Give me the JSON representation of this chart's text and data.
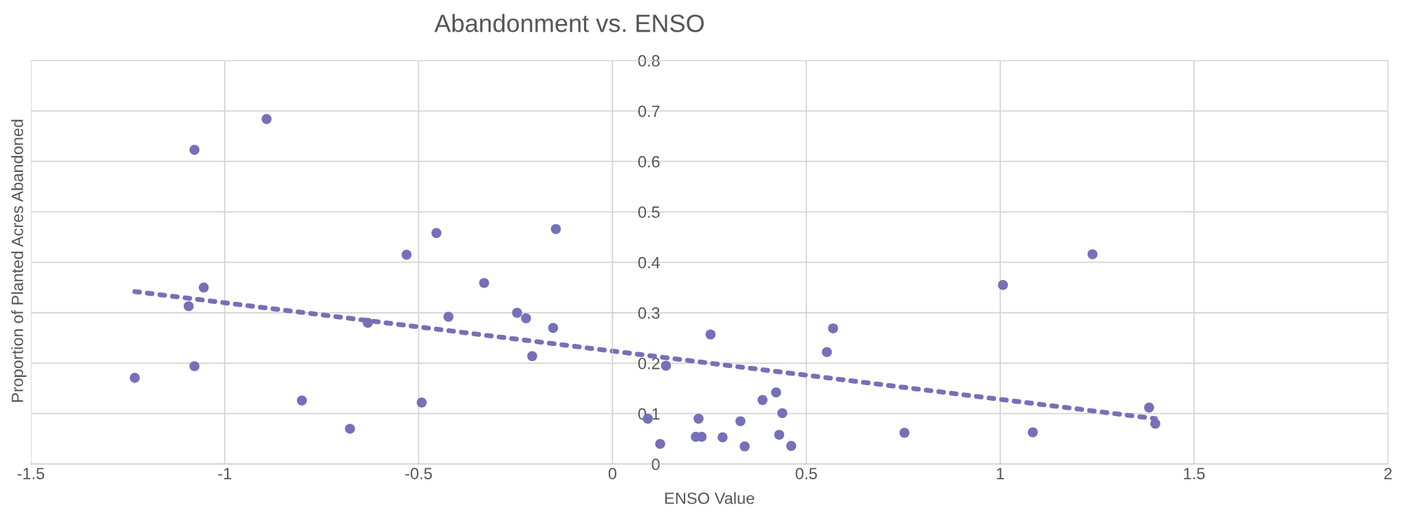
{
  "chart_data": {
    "type": "scatter",
    "title": "Abandonment vs. ENSO",
    "xlabel": "ENSO Value",
    "ylabel": "Proportion of Planted Acres Abandoned",
    "xlim": [
      -1.5,
      2
    ],
    "xticks": [
      -1.5,
      -1,
      -0.5,
      0,
      0.5,
      1,
      1.5,
      2
    ],
    "ylim": [
      0,
      0.8
    ],
    "yticks": [
      0,
      0.1,
      0.2,
      0.3,
      0.4,
      0.5,
      0.6,
      0.7,
      0.8
    ],
    "grid": true,
    "marker": "circle",
    "series": [
      {
        "color": "#7570b8",
        "x": [
          -0.892,
          -1.078,
          -0.454,
          -0.531,
          -0.146,
          -0.331,
          -1.054,
          -1.093,
          -0.423,
          -0.246,
          -0.223,
          -0.153,
          -0.207,
          -0.631,
          -1.232,
          -1.078,
          -0.801,
          -0.492,
          -0.677,
          0.091,
          0.123,
          0.138,
          0.253,
          0.222,
          0.215,
          0.23,
          0.284,
          0.33,
          0.341,
          0.387,
          0.422,
          0.438,
          0.43,
          0.461,
          0.553,
          0.569,
          0.753,
          1.007,
          1.238,
          1.084,
          1.384,
          1.4
        ],
        "values": [
          0.684,
          0.623,
          0.458,
          0.415,
          0.466,
          0.359,
          0.35,
          0.313,
          0.292,
          0.3,
          0.289,
          0.27,
          0.214,
          0.28,
          0.171,
          0.194,
          0.126,
          0.122,
          0.07,
          0.09,
          0.04,
          0.195,
          0.257,
          0.09,
          0.054,
          0.054,
          0.053,
          0.085,
          0.035,
          0.127,
          0.142,
          0.101,
          0.058,
          0.036,
          0.222,
          0.269,
          0.062,
          0.355,
          0.416,
          0.063,
          0.112,
          0.08
        ]
      },
      {
        "type": "line",
        "line_style": "dotted",
        "marker": "none",
        "color": "#7570b8",
        "x": [
          -1.232,
          1.4
        ],
        "values": [
          0.342,
          0.09
        ]
      }
    ]
  }
}
